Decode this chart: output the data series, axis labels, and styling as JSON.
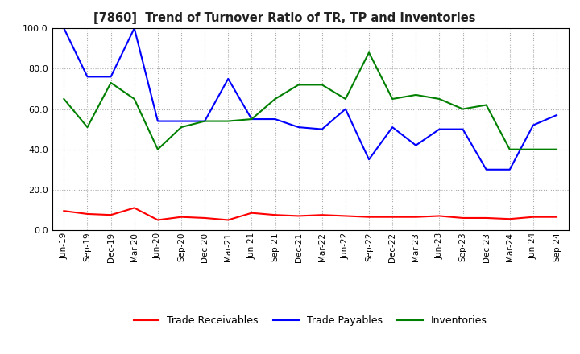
{
  "title": "[7860]  Trend of Turnover Ratio of TR, TP and Inventories",
  "x_labels": [
    "Jun-19",
    "Sep-19",
    "Dec-19",
    "Mar-20",
    "Jun-20",
    "Sep-20",
    "Dec-20",
    "Mar-21",
    "Jun-21",
    "Sep-21",
    "Dec-21",
    "Mar-22",
    "Jun-22",
    "Sep-22",
    "Dec-22",
    "Mar-23",
    "Jun-23",
    "Sep-23",
    "Dec-23",
    "Mar-24",
    "Jun-24",
    "Sep-24"
  ],
  "trade_receivables": [
    9.5,
    8.0,
    7.5,
    11.0,
    5.0,
    6.5,
    6.0,
    5.0,
    8.5,
    7.5,
    7.0,
    7.5,
    7.0,
    6.5,
    6.5,
    6.5,
    7.0,
    6.0,
    6.0,
    5.5,
    6.5,
    6.5
  ],
  "trade_payables": [
    100.0,
    76.0,
    76.0,
    100.0,
    54.0,
    54.0,
    54.0,
    75.0,
    55.0,
    55.0,
    51.0,
    50.0,
    60.0,
    35.0,
    51.0,
    42.0,
    50.0,
    50.0,
    30.0,
    30.0,
    52.0,
    57.0
  ],
  "inventories": [
    65.0,
    51.0,
    73.0,
    65.0,
    40.0,
    51.0,
    54.0,
    54.0,
    55.0,
    65.0,
    72.0,
    72.0,
    65.0,
    88.0,
    65.0,
    67.0,
    65.0,
    60.0,
    62.0,
    40.0,
    40.0,
    40.0
  ],
  "tr_color": "#ff0000",
  "tp_color": "#0000ff",
  "inv_color": "#008000",
  "ylim": [
    0,
    100
  ],
  "yticks": [
    0.0,
    20.0,
    40.0,
    60.0,
    80.0,
    100.0
  ],
  "legend_labels": [
    "Trade Receivables",
    "Trade Payables",
    "Inventories"
  ],
  "background_color": "#ffffff",
  "grid_color": "#aaaaaa"
}
